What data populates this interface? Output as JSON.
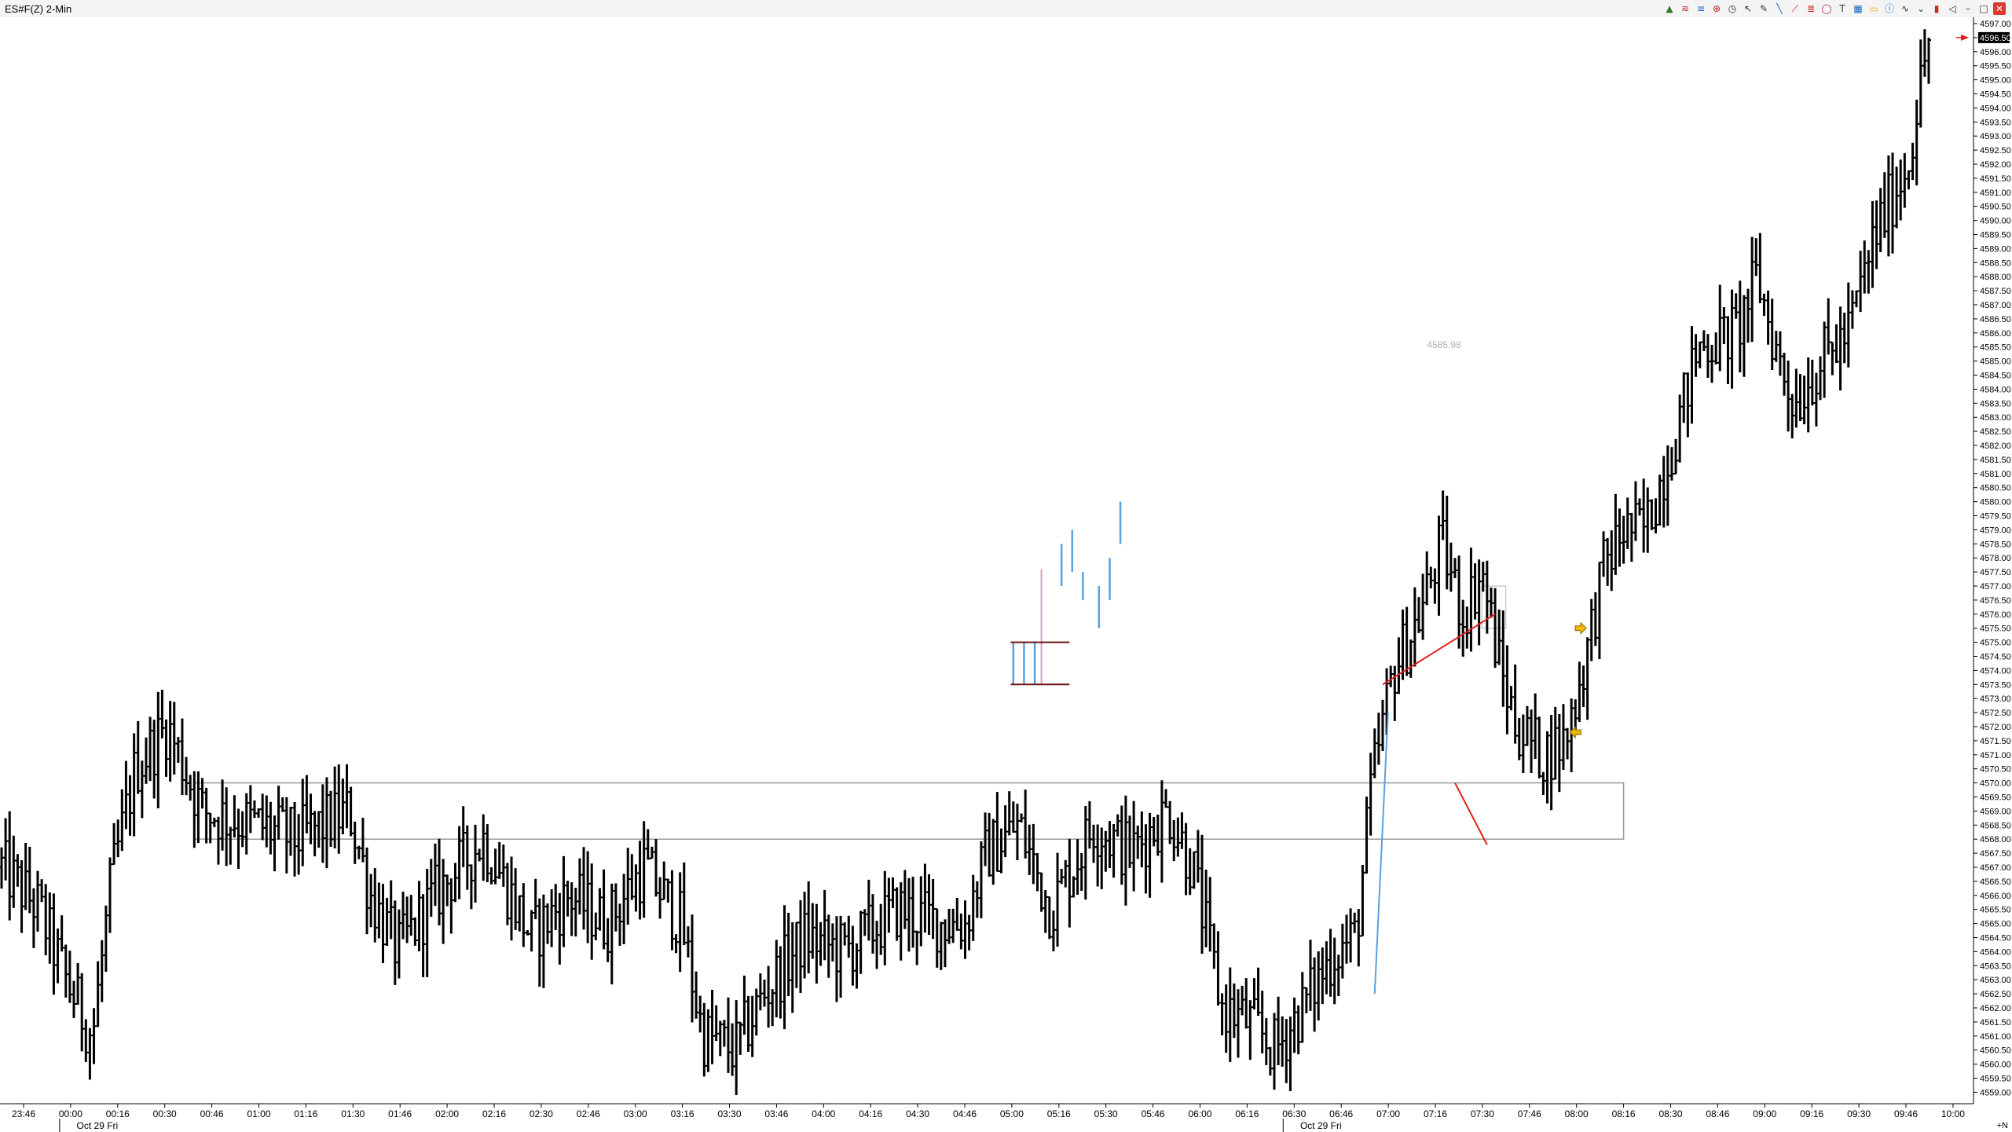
{
  "window": {
    "title": "ES#F(Z) 2-Min"
  },
  "toolbar": {
    "items": [
      {
        "name": "data-series-icon",
        "glyph": "▲",
        "color": "#2e7d32"
      },
      {
        "name": "wave-icon",
        "glyph": "≋",
        "color": "#c62828"
      },
      {
        "name": "grid-lines-icon",
        "glyph": "≡",
        "color": "#1565c0"
      },
      {
        "name": "crosshair-icon",
        "glyph": "⊕",
        "color": "#b71c1c"
      },
      {
        "name": "clock-icon",
        "glyph": "◷",
        "color": "#333333"
      },
      {
        "name": "pointer-icon",
        "glyph": "↖",
        "color": "#333333"
      },
      {
        "name": "pencil-icon",
        "glyph": "✎",
        "color": "#333333"
      },
      {
        "name": "line-draw-icon",
        "glyph": "╲",
        "color": "#1565c0"
      },
      {
        "name": "ray-icon",
        "glyph": "⟋",
        "color": "#b71c1c"
      },
      {
        "name": "fibonacci-icon",
        "glyph": "≣",
        "color": "#b71c1c"
      },
      {
        "name": "circle-icon",
        "glyph": "◯",
        "color": "#c2185b"
      },
      {
        "name": "text-tool-icon",
        "glyph": "T",
        "color": "#333333"
      },
      {
        "name": "grid-icon",
        "glyph": "▦",
        "color": "#1565c0"
      },
      {
        "name": "rectangle-icon",
        "glyph": "▭",
        "color": "#f9a825"
      },
      {
        "name": "info-icon",
        "glyph": "ⓘ",
        "color": "#1565c0"
      },
      {
        "name": "zigzag-icon",
        "glyph": "∿",
        "color": "#333333"
      },
      {
        "name": "chevron-down-icon",
        "glyph": "⌄",
        "color": "#333333"
      },
      {
        "name": "candle-icon",
        "glyph": "▮",
        "color": "#c62828"
      },
      {
        "name": "speaker-icon",
        "glyph": "◁",
        "color": "#333333"
      },
      {
        "name": "minus-icon",
        "glyph": "–",
        "color": "#333333"
      },
      {
        "name": "add-icon",
        "glyph": "□",
        "color": "#333333"
      }
    ],
    "close_glyph": "✕"
  },
  "chart_data": {
    "type": "ohlc",
    "symbol": "ES#F(Z)",
    "interval": "2-Min",
    "ylim": [
      4559.0,
      4597.0
    ],
    "price_ticks": [
      "4597.00",
      "4596.50",
      "4596.00",
      "4595.50",
      "4595.00",
      "4594.50",
      "4594.00",
      "4593.50",
      "4593.00",
      "4592.50",
      "4592.00",
      "4591.50",
      "4591.00",
      "4590.50",
      "4590.00",
      "4589.50",
      "4589.00",
      "4588.50",
      "4588.00",
      "4587.50",
      "4587.00",
      "4586.50",
      "4586.00",
      "4585.50",
      "4585.00",
      "4584.50",
      "4584.00",
      "4583.50",
      "4583.00",
      "4582.50",
      "4582.00",
      "4581.50",
      "4581.00",
      "4580.50",
      "4580.00",
      "4579.50",
      "4579.00",
      "4578.50",
      "4578.00",
      "4577.50",
      "4577.00",
      "4576.50",
      "4576.00",
      "4575.50",
      "4575.00",
      "4574.50",
      "4574.00",
      "4573.50",
      "4573.00",
      "4572.50",
      "4572.00",
      "4571.50",
      "4571.00",
      "4570.50",
      "4570.00",
      "4569.50",
      "4569.00",
      "4568.50",
      "4568.00",
      "4567.50",
      "4567.00",
      "4566.50",
      "4566.00",
      "4565.50",
      "4565.00",
      "4564.50",
      "4564.00",
      "4563.50",
      "4563.00",
      "4562.50",
      "4562.00",
      "4561.50",
      "4561.00",
      "4560.50",
      "4560.00",
      "4559.50",
      "4559.00"
    ],
    "last_price": "4596.50",
    "time_labels": [
      "23:46",
      "00:00",
      "00:16",
      "00:30",
      "00:46",
      "01:00",
      "01:16",
      "01:30",
      "01:46",
      "02:00",
      "02:16",
      "02:30",
      "02:46",
      "03:00",
      "03:16",
      "03:30",
      "03:46",
      "04:00",
      "04:16",
      "04:30",
      "04:46",
      "05:00",
      "05:16",
      "05:30",
      "05:46",
      "06:00",
      "06:16",
      "06:30",
      "06:46",
      "07:00",
      "07:16",
      "07:30",
      "07:46",
      "08:00",
      "08:16",
      "08:30",
      "08:46",
      "09:00",
      "09:16",
      "09:30",
      "09:46",
      "10:00"
    ],
    "date_labels": [
      {
        "label": "Oct 29 Fri",
        "after": "00:00"
      },
      {
        "label": "Oct 29 Fri",
        "after": "06:30"
      }
    ],
    "corner_label": "+N",
    "annotation_text": "4585.98",
    "anchors": [
      {
        "t": 0,
        "p": 4567.0
      },
      {
        "t": 14,
        "p": 4565.5
      },
      {
        "t": 24,
        "p": 4563.0
      },
      {
        "t": 34,
        "p": 4561.0
      },
      {
        "t": 41,
        "p": 4566.5
      },
      {
        "t": 50,
        "p": 4570.5
      },
      {
        "t": 62,
        "p": 4572.0
      },
      {
        "t": 75,
        "p": 4569.0
      },
      {
        "t": 95,
        "p": 4568.5
      },
      {
        "t": 110,
        "p": 4568.0
      },
      {
        "t": 130,
        "p": 4569.0
      },
      {
        "t": 138,
        "p": 4566.0
      },
      {
        "t": 148,
        "p": 4564.0
      },
      {
        "t": 162,
        "p": 4566.0
      },
      {
        "t": 180,
        "p": 4568.0
      },
      {
        "t": 198,
        "p": 4564.5
      },
      {
        "t": 212,
        "p": 4566.0
      },
      {
        "t": 226,
        "p": 4565.0
      },
      {
        "t": 240,
        "p": 4567.0
      },
      {
        "t": 254,
        "p": 4565.0
      },
      {
        "t": 262,
        "p": 4561.0
      },
      {
        "t": 274,
        "p": 4560.5
      },
      {
        "t": 285,
        "p": 4562.5
      },
      {
        "t": 300,
        "p": 4564.5
      },
      {
        "t": 315,
        "p": 4564.0
      },
      {
        "t": 335,
        "p": 4565.5
      },
      {
        "t": 352,
        "p": 4565.0
      },
      {
        "t": 360,
        "p": 4565.0
      },
      {
        "t": 368,
        "p": 4567.5
      },
      {
        "t": 380,
        "p": 4568.5
      },
      {
        "t": 392,
        "p": 4565.5
      },
      {
        "t": 408,
        "p": 4568.5
      },
      {
        "t": 422,
        "p": 4567.5
      },
      {
        "t": 436,
        "p": 4569.0
      },
      {
        "t": 445,
        "p": 4567.0
      },
      {
        "t": 456,
        "p": 4562.0
      },
      {
        "t": 466,
        "p": 4561.5
      },
      {
        "t": 476,
        "p": 4560.5
      },
      {
        "t": 486,
        "p": 4562.0
      },
      {
        "t": 498,
        "p": 4564.0
      },
      {
        "t": 506,
        "p": 4564.5
      },
      {
        "t": 512,
        "p": 4570.0
      },
      {
        "t": 520,
        "p": 4574.0
      },
      {
        "t": 530,
        "p": 4576.0
      },
      {
        "t": 538,
        "p": 4578.5
      },
      {
        "t": 546,
        "p": 4576.0
      },
      {
        "t": 553,
        "p": 4577.5
      },
      {
        "t": 560,
        "p": 4574.0
      },
      {
        "t": 566,
        "p": 4572.0
      },
      {
        "t": 576,
        "p": 4571.0
      },
      {
        "t": 584,
        "p": 4571.5
      },
      {
        "t": 592,
        "p": 4574.5
      },
      {
        "t": 598,
        "p": 4577.5
      },
      {
        "t": 606,
        "p": 4579.0
      },
      {
        "t": 614,
        "p": 4579.0
      },
      {
        "t": 624,
        "p": 4582.0
      },
      {
        "t": 634,
        "p": 4585.5
      },
      {
        "t": 648,
        "p": 4586.0
      },
      {
        "t": 656,
        "p": 4588.0
      },
      {
        "t": 664,
        "p": 4585.0
      },
      {
        "t": 670,
        "p": 4583.5
      },
      {
        "t": 680,
        "p": 4585.0
      },
      {
        "t": 690,
        "p": 4586.0
      },
      {
        "t": 700,
        "p": 4589.5
      },
      {
        "t": 712,
        "p": 4592.0
      },
      {
        "t": 720,
        "p": 4596.5
      }
    ],
    "zone_box": {
      "t0": 72,
      "t1": 606,
      "p_top": 4570.0,
      "p_bottom": 4568.0
    },
    "small_box": {
      "t0": 553,
      "t1": 562,
      "p_top": 4577.0,
      "p_bottom": 4575.5
    },
    "drawings": [
      {
        "kind": "line",
        "color": "#e0201b",
        "t0": 516,
        "p0": 4573.5,
        "t1": 558,
        "p1": 4576.0
      },
      {
        "kind": "line",
        "color": "#e0201b",
        "t0": 543,
        "p0": 4570.0,
        "t1": 555,
        "p1": 4567.8
      },
      {
        "kind": "line",
        "color": "#5aa0e0",
        "t0": 513,
        "p0": 4562.5,
        "t1": 518,
        "p1": 4572.5
      }
    ],
    "blue_cluster": {
      "t0": 378,
      "p_low": 4573.5,
      "p_high": 4575.0
    },
    "blue_ticks": [
      {
        "t": 396,
        "p_low": 4577.0,
        "p_high": 4578.5
      },
      {
        "t": 400,
        "p_low": 4577.5,
        "p_high": 4579.0
      },
      {
        "t": 404,
        "p_low": 4576.5,
        "p_high": 4577.5
      },
      {
        "t": 410,
        "p_low": 4575.5,
        "p_high": 4577.0
      },
      {
        "t": 414,
        "p_low": 4576.5,
        "p_high": 4578.0
      },
      {
        "t": 418,
        "p_low": 4578.5,
        "p_high": 4580.0
      }
    ],
    "arrows": [
      {
        "t": 590,
        "p": 4575.5,
        "dir": "right"
      },
      {
        "t": 588,
        "p": 4571.8,
        "dir": "left"
      }
    ]
  }
}
